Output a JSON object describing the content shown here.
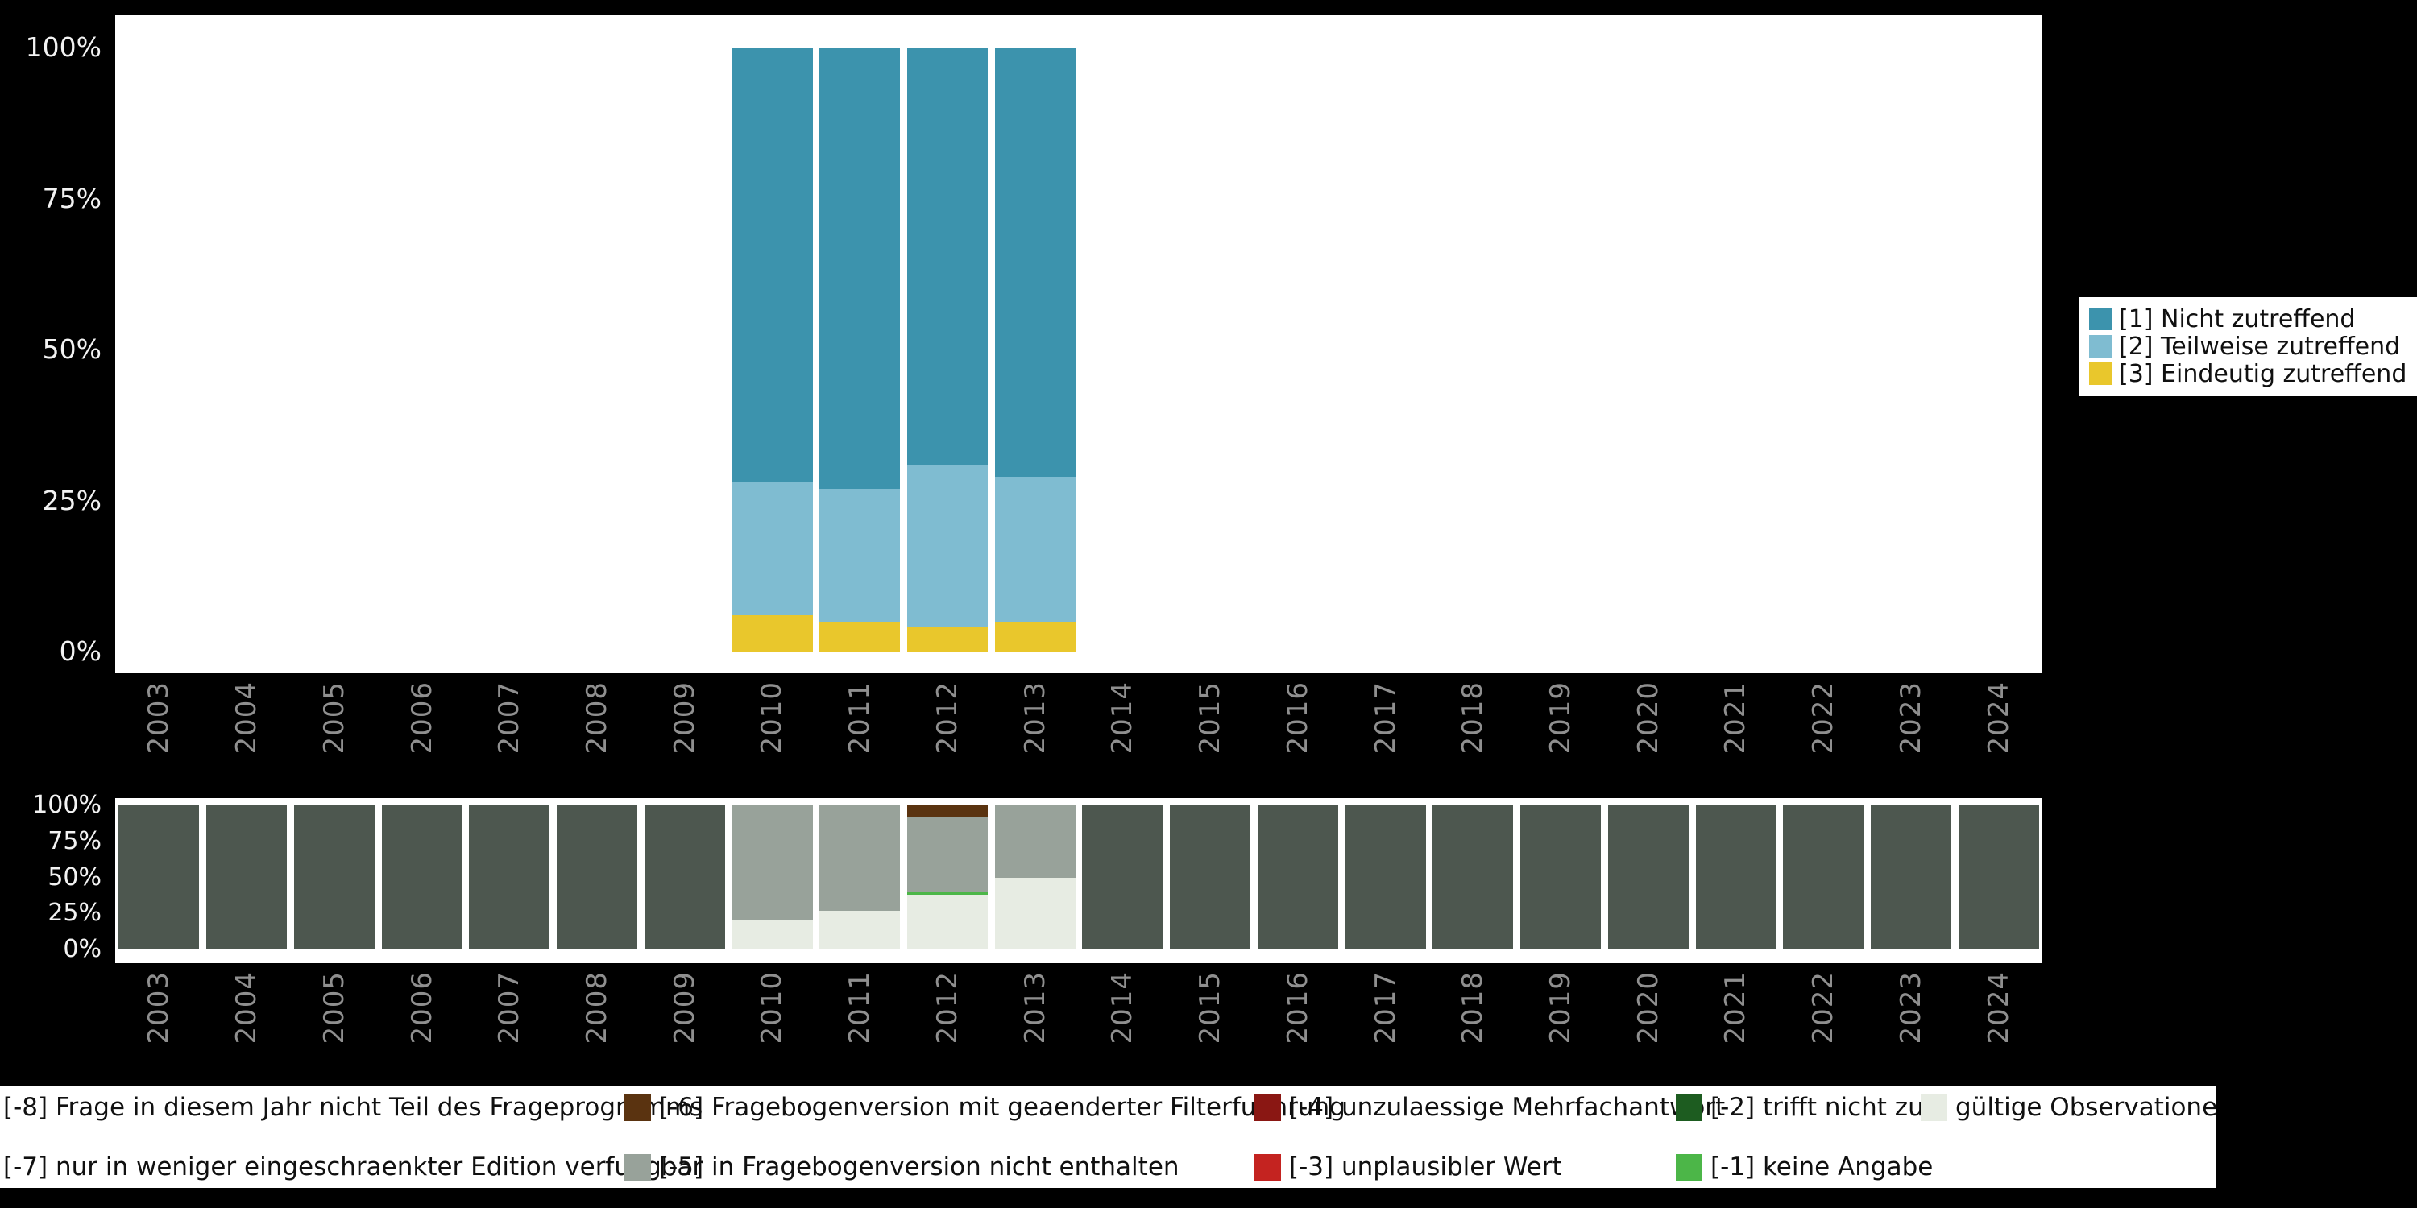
{
  "page": {
    "background": "#000000"
  },
  "top_chart_legend": {
    "items": [
      {
        "label": "[1] Nicht zutreffend",
        "color": "#3c93ad"
      },
      {
        "label": "[2] Teilweise zutreffend",
        "color": "#7fbcd1"
      },
      {
        "label": "[3] Eindeutig zutreffend",
        "color": "#e9c72c"
      }
    ]
  },
  "bottom_legend": {
    "columns": [
      {
        "items": [
          {
            "label": "[-8] Frage in diesem Jahr nicht Teil des Frageprogramms",
            "color": "#4d574f"
          },
          {
            "label": "[-7] nur in weniger eingeschraenkter Edition verfuegbar",
            "color": "#7d857d"
          }
        ]
      },
      {
        "items": [
          {
            "label": "[-6] Fragebogenversion mit geaenderter Filterfuehrung",
            "color": "#5a3310"
          },
          {
            "label": "[-5] in Fragebogenversion nicht enthalten",
            "color": "#98a29a"
          }
        ]
      },
      {
        "items": [
          {
            "label": "[-4] unzulaessige Mehrfachantwort",
            "color": "#8a1713"
          },
          {
            "label": "[-3] unplausibler Wert",
            "color": "#c42320"
          }
        ]
      },
      {
        "items": [
          {
            "label": "[-2] trifft nicht zu",
            "color": "#1d5c20"
          },
          {
            "label": "[-1] keine Angabe",
            "color": "#4cb648"
          }
        ]
      },
      {
        "items": [
          {
            "label": "gültige Observationen",
            "color": "#e7ece3"
          }
        ]
      }
    ]
  },
  "chart_data": [
    {
      "type": "bar",
      "stacked": true,
      "unit": "percent",
      "stack_order": "bottom-to-top",
      "title": "",
      "xlabel": "",
      "ylabel": "",
      "ylim": [
        0,
        100
      ],
      "yticks": [
        "0%",
        "25%",
        "50%",
        "75%",
        "100%"
      ],
      "legend_position": "right",
      "categories": [
        "2003",
        "2004",
        "2005",
        "2006",
        "2007",
        "2008",
        "2009",
        "2010",
        "2011",
        "2012",
        "2013",
        "2014",
        "2015",
        "2016",
        "2017",
        "2018",
        "2019",
        "2020",
        "2021",
        "2022",
        "2023",
        "2024"
      ],
      "series": [
        {
          "name": "[3] Eindeutig zutreffend",
          "color": "#e9c72c",
          "values": [
            0,
            0,
            0,
            0,
            0,
            0,
            0,
            6,
            5,
            4,
            5,
            0,
            0,
            0,
            0,
            0,
            0,
            0,
            0,
            0,
            0,
            0
          ]
        },
        {
          "name": "[2] Teilweise zutreffend",
          "color": "#7fbcd1",
          "values": [
            0,
            0,
            0,
            0,
            0,
            0,
            0,
            22,
            22,
            27,
            24,
            0,
            0,
            0,
            0,
            0,
            0,
            0,
            0,
            0,
            0,
            0
          ]
        },
        {
          "name": "[1] Nicht zutreffend",
          "color": "#3c93ad",
          "values": [
            0,
            0,
            0,
            0,
            0,
            0,
            0,
            72,
            73,
            69,
            71,
            0,
            0,
            0,
            0,
            0,
            0,
            0,
            0,
            0,
            0,
            0
          ]
        }
      ]
    },
    {
      "type": "bar",
      "stacked": true,
      "unit": "percent",
      "stack_order": "bottom-to-top",
      "title": "",
      "xlabel": "",
      "ylabel": "",
      "ylim": [
        0,
        100
      ],
      "yticks": [
        "0%",
        "25%",
        "50%",
        "75%",
        "100%"
      ],
      "legend_position": "bottom",
      "categories": [
        "2003",
        "2004",
        "2005",
        "2006",
        "2007",
        "2008",
        "2009",
        "2010",
        "2011",
        "2012",
        "2013",
        "2014",
        "2015",
        "2016",
        "2017",
        "2018",
        "2019",
        "2020",
        "2021",
        "2022",
        "2023",
        "2024"
      ],
      "series": [
        {
          "name": "gültige Observationen",
          "color": "#e7ece3",
          "values": [
            0,
            0,
            0,
            0,
            0,
            0,
            0,
            20,
            27,
            38,
            50,
            0,
            0,
            0,
            0,
            0,
            0,
            0,
            0,
            0,
            0,
            0
          ]
        },
        {
          "name": "[-1] keine Angabe",
          "color": "#4cb648",
          "values": [
            0,
            0,
            0,
            0,
            0,
            0,
            0,
            0,
            0,
            2,
            0,
            0,
            0,
            0,
            0,
            0,
            0,
            0,
            0,
            0,
            0,
            0
          ]
        },
        {
          "name": "[-5] in Fragebogenversion nicht enthalten",
          "color": "#98a29a",
          "values": [
            0,
            0,
            0,
            0,
            0,
            0,
            0,
            80,
            73,
            52,
            50,
            0,
            0,
            0,
            0,
            0,
            0,
            0,
            0,
            0,
            0,
            0
          ]
        },
        {
          "name": "[-6] Fragebogenversion mit geaenderter Filterfuehrung",
          "color": "#5a3310",
          "values": [
            0,
            0,
            0,
            0,
            0,
            0,
            0,
            0,
            0,
            8,
            0,
            0,
            0,
            0,
            0,
            0,
            0,
            0,
            0,
            0,
            0,
            0
          ]
        },
        {
          "name": "[-8] Frage in diesem Jahr nicht Teil des Frageprogramms",
          "color": "#4d574f",
          "values": [
            100,
            100,
            100,
            100,
            100,
            100,
            100,
            0,
            0,
            0,
            0,
            100,
            100,
            100,
            100,
            100,
            100,
            100,
            100,
            100,
            100,
            100
          ]
        }
      ]
    }
  ]
}
